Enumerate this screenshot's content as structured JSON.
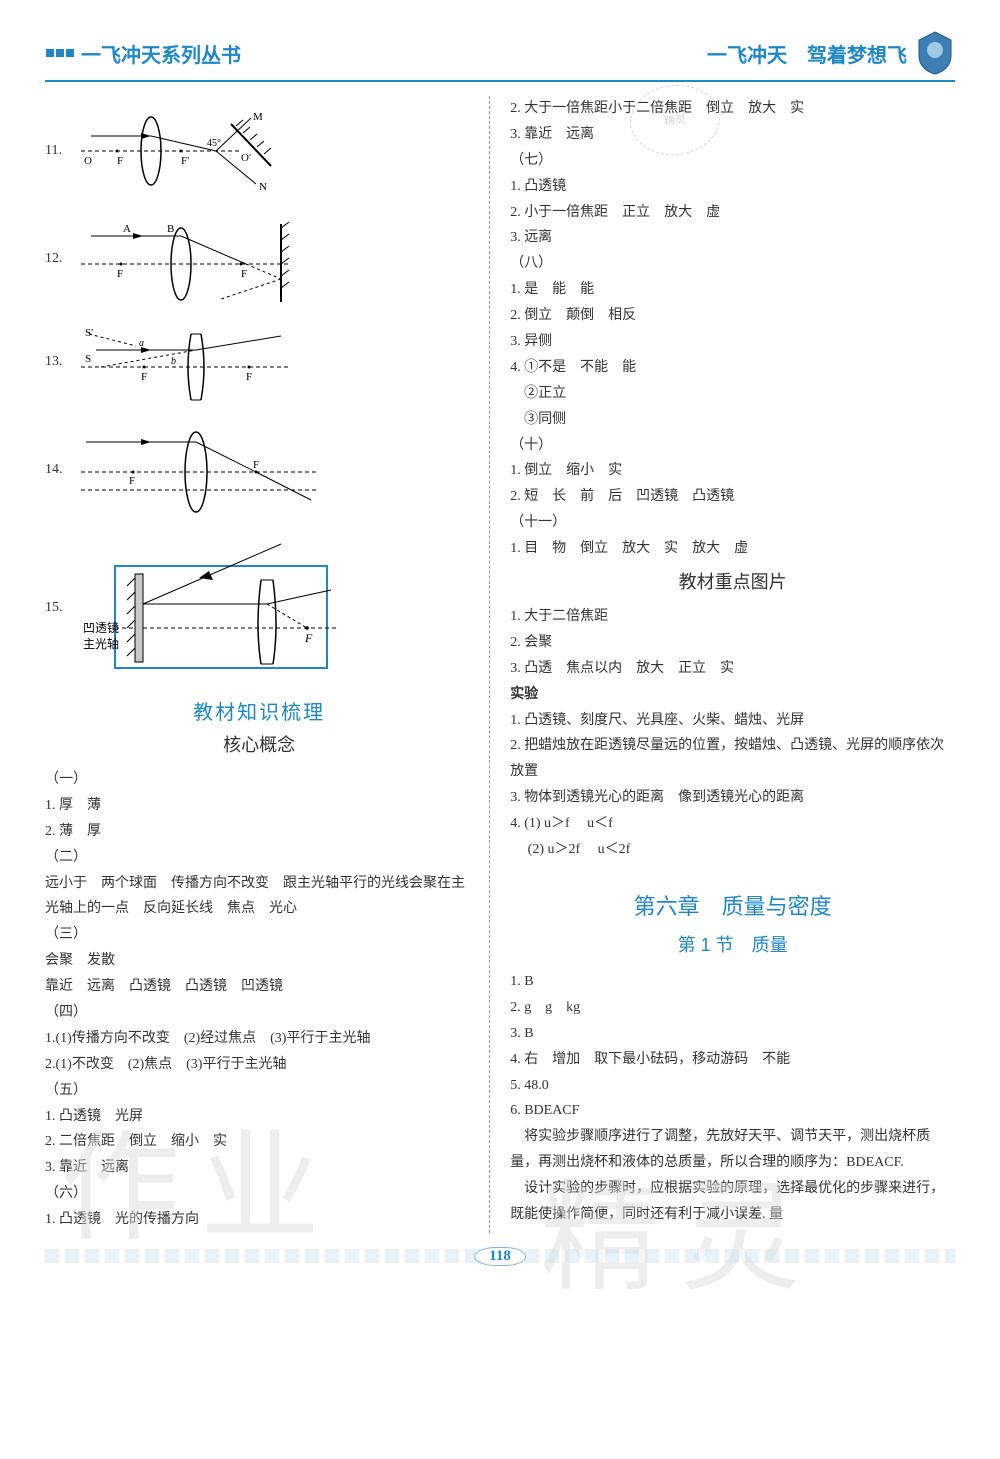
{
  "header": {
    "left_title": "一飞冲天系列丛书",
    "right_title": "一飞冲天　驾着梦想飞"
  },
  "stamp": "精灵",
  "watermark1": "作业",
  "watermark2": "精灵",
  "page_number": "118",
  "figures": {
    "f11": {
      "num": "11.",
      "labels": {
        "O": "O",
        "F1": "F",
        "F2": "F'",
        "Op": "O'",
        "M": "M",
        "N": "N",
        "ang": "45°"
      }
    },
    "f12": {
      "num": "12.",
      "labels": {
        "A": "A",
        "B": "B",
        "F1": "F",
        "F2": "F"
      }
    },
    "f13": {
      "num": "13.",
      "labels": {
        "S": "S",
        "Sp": "S'",
        "a": "a",
        "b": "b",
        "F1": "F",
        "F2": "F"
      }
    },
    "f14": {
      "num": "14.",
      "labels": {
        "F1": "F",
        "F2": "F"
      }
    },
    "f15": {
      "num": "15.",
      "labels": {
        "mirror": "凹透镜",
        "axis": "主光轴",
        "F": "F"
      }
    }
  },
  "left_sections": {
    "title": "教材知识梳理",
    "subtitle": "核心概念",
    "groups": [
      {
        "head": "（一）",
        "lines": [
          "1. 厚　薄",
          "2. 薄　厚"
        ]
      },
      {
        "head": "（二）",
        "lines": [
          "远小于　两个球面　传播方向不改变　跟主光轴平行的光线会聚在主光轴上的一点　反向延长线　焦点　光心"
        ]
      },
      {
        "head": "（三）",
        "lines": [
          "会聚　发散",
          "靠近　远离　凸透镜　凸透镜　凹透镜"
        ]
      },
      {
        "head": "（四）",
        "lines": [
          "1.(1)传播方向不改变　(2)经过焦点　(3)平行于主光轴",
          "2.(1)不改变　(2)焦点　(3)平行于主光轴"
        ]
      },
      {
        "head": "（五）",
        "lines": [
          "1. 凸透镜　光屏",
          "2. 二倍焦距　倒立　缩小　实",
          "3. 靠近　远离"
        ]
      },
      {
        "head": "（六）",
        "lines": [
          "1. 凸透镜　光的传播方向"
        ]
      }
    ]
  },
  "right_top": [
    "2. 大于一倍焦距小于二倍焦距　倒立　放大　实",
    "3. 靠近　远离",
    "（七）",
    "1. 凸透镜",
    "2. 小于一倍焦距　正立　放大　虚",
    "3. 远离",
    "（八）",
    "1. 是　能　能",
    "2. 倒立　颠倒　相反",
    "3. 异侧",
    "4. ①不是　不能　能",
    "　②正立",
    "　③同侧",
    "（十）",
    "1. 倒立　缩小　实",
    "2. 短　长　前　后　凹透镜　凸透镜",
    "（十一）",
    "1. 目　物　倒立　放大　实　放大　虚"
  ],
  "right_mid_title": "教材重点图片",
  "right_mid": [
    "1. 大于二倍焦距",
    "2. 会聚",
    "3. 凸透　焦点以内　放大　正立　实"
  ],
  "experiment_head": "实验",
  "experiment": [
    "1. 凸透镜、刻度尺、光具座、火柴、蜡烛、光屏",
    "2. 把蜡烛放在距透镜尽量远的位置，按蜡烛、凸透镜、光屏的顺序依次放置",
    "3. 物体到透镜光心的距离　像到透镜光心的距离",
    "4. (1) u＞f　 u＜f",
    "　 (2) u＞2f　 u＜2f"
  ],
  "chapter": "第六章　质量与密度",
  "section": "第 1 节　质量",
  "right_bottom": [
    "1. B",
    "2. g　g　kg",
    "3. B",
    "4. 右　增加　取下最小砝码，移动游码　不能",
    "5. 48.0",
    "6. BDEACF",
    "　将实验步骤顺序进行了调整，先放好天平、调节天平，测出烧杯质量，再测出烧杯和液体的总质量，所以合理的顺序为：BDEACF.",
    "　设计实验的步骤时，应根据实验的原理，选择最优化的步骤来进行，既能使操作简便，同时还有利于减小误差. 量"
  ],
  "colors": {
    "accent": "#1e88c7",
    "text": "#333333",
    "grid": "#cfe6f4",
    "watermark": "#d9d9d9"
  }
}
